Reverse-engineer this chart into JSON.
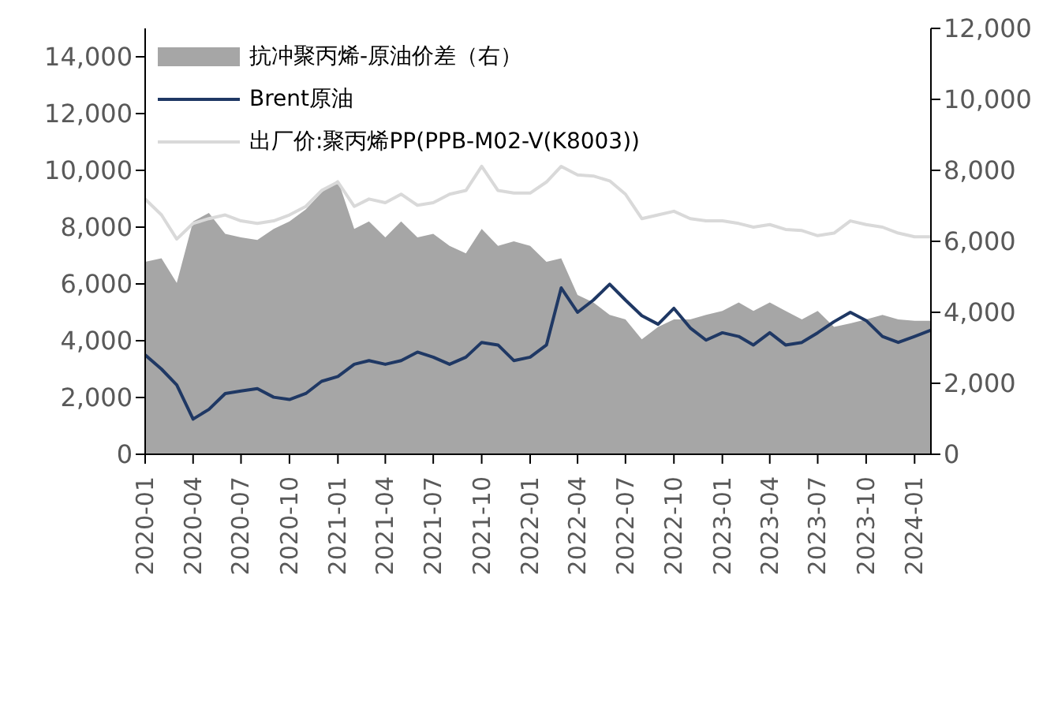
{
  "chart_data": {
    "type": "line",
    "x": [
      "2020-01",
      "2020-02",
      "2020-03",
      "2020-04",
      "2020-05",
      "2020-06",
      "2020-07",
      "2020-08",
      "2020-09",
      "2020-10",
      "2020-11",
      "2020-12",
      "2021-01",
      "2021-02",
      "2021-03",
      "2021-04",
      "2021-05",
      "2021-06",
      "2021-07",
      "2021-08",
      "2021-09",
      "2021-10",
      "2021-11",
      "2021-12",
      "2022-01",
      "2022-02",
      "2022-03",
      "2022-04",
      "2022-05",
      "2022-06",
      "2022-07",
      "2022-08",
      "2022-09",
      "2022-10",
      "2022-11",
      "2022-12",
      "2023-01",
      "2023-02",
      "2023-03",
      "2023-04",
      "2023-05",
      "2023-06",
      "2023-07",
      "2023-08",
      "2023-09",
      "2023-10",
      "2023-11",
      "2023-12",
      "2024-01",
      "2024-02"
    ],
    "series": [
      {
        "name": "抗冲聚丙烯-原油价差（右）",
        "type": "area",
        "axis": "y2",
        "color": "#a6a6a6",
        "values": [
          5420,
          5520,
          4830,
          6560,
          6800,
          6210,
          6110,
          6040,
          6350,
          6560,
          6900,
          7380,
          7730,
          6350,
          6560,
          6110,
          6560,
          6110,
          6210,
          5870,
          5660,
          6350,
          5870,
          6000,
          5870,
          5420,
          5520,
          4490,
          4280,
          3930,
          3800,
          3240,
          3590,
          3800,
          3800,
          3930,
          4040,
          4280,
          4040,
          4280,
          4040,
          3800,
          4040,
          3590,
          3690,
          3800,
          3930,
          3800,
          3760,
          3760
        ]
      },
      {
        "name": "Brent原油",
        "color": "#1f3864",
        "values": [
          3500,
          3000,
          2440,
          1240,
          1580,
          2140,
          2230,
          2310,
          2010,
          1930,
          2140,
          2570,
          2740,
          3170,
          3300,
          3170,
          3300,
          3600,
          3420,
          3170,
          3420,
          3940,
          3850,
          3300,
          3420,
          3850,
          5860,
          5000,
          5430,
          5990,
          5430,
          4880,
          4580,
          5140,
          4450,
          4020,
          4280,
          4150,
          3850,
          4280,
          3850,
          3940,
          4280,
          4670,
          5000,
          4710,
          4150,
          3940,
          4150,
          4370
        ]
      },
      {
        "name": "出厂价:聚丙烯PP(PPB-M02-V(K8003))",
        "color": "#d9d9d9",
        "values": [
          8990,
          8430,
          7580,
          8130,
          8300,
          8430,
          8220,
          8130,
          8220,
          8430,
          8730,
          9290,
          9590,
          8730,
          8990,
          8860,
          9160,
          8770,
          8860,
          9160,
          9290,
          10140,
          9290,
          9200,
          9200,
          9590,
          10140,
          9840,
          9800,
          9630,
          9160,
          8300,
          8430,
          8560,
          8300,
          8220,
          8220,
          8130,
          8000,
          8090,
          7920,
          7880,
          7700,
          7790,
          8220,
          8090,
          8000,
          7790,
          7660,
          7660
        ]
      }
    ],
    "xlim": [
      "2020-01",
      "2024-02"
    ],
    "xticks": [
      "2020-01",
      "2020-04",
      "2020-07",
      "2020-10",
      "2021-01",
      "2021-04",
      "2021-07",
      "2021-10",
      "2022-01",
      "2022-04",
      "2022-07",
      "2022-10",
      "2023-01",
      "2023-04",
      "2023-07",
      "2023-10",
      "2024-01"
    ],
    "ylim": [
      0,
      15000
    ],
    "yticks": [
      0,
      {
        "value": 2000,
        "label": "2,000"
      },
      {
        "value": 4000,
        "label": "4,000"
      },
      {
        "value": 6000,
        "label": "6,000"
      },
      {
        "value": 8000,
        "label": "8,000"
      },
      {
        "value": 10000,
        "label": "10,000"
      },
      {
        "value": 12000,
        "label": "12,000"
      },
      {
        "value": 14000,
        "label": "14,000"
      }
    ],
    "y2lim": [
      0,
      12000
    ],
    "y2ticks": [
      0,
      {
        "value": 2000,
        "label": "2,000"
      },
      {
        "value": 4000,
        "label": "4,000"
      },
      {
        "value": 6000,
        "label": "6,000"
      },
      {
        "value": 8000,
        "label": "8,000"
      },
      {
        "value": 10000,
        "label": "10,000"
      },
      {
        "value": 12000,
        "label": "12,000"
      }
    ],
    "legend": "top left",
    "grid": false,
    "marker": "none",
    "line_style": "solid"
  }
}
